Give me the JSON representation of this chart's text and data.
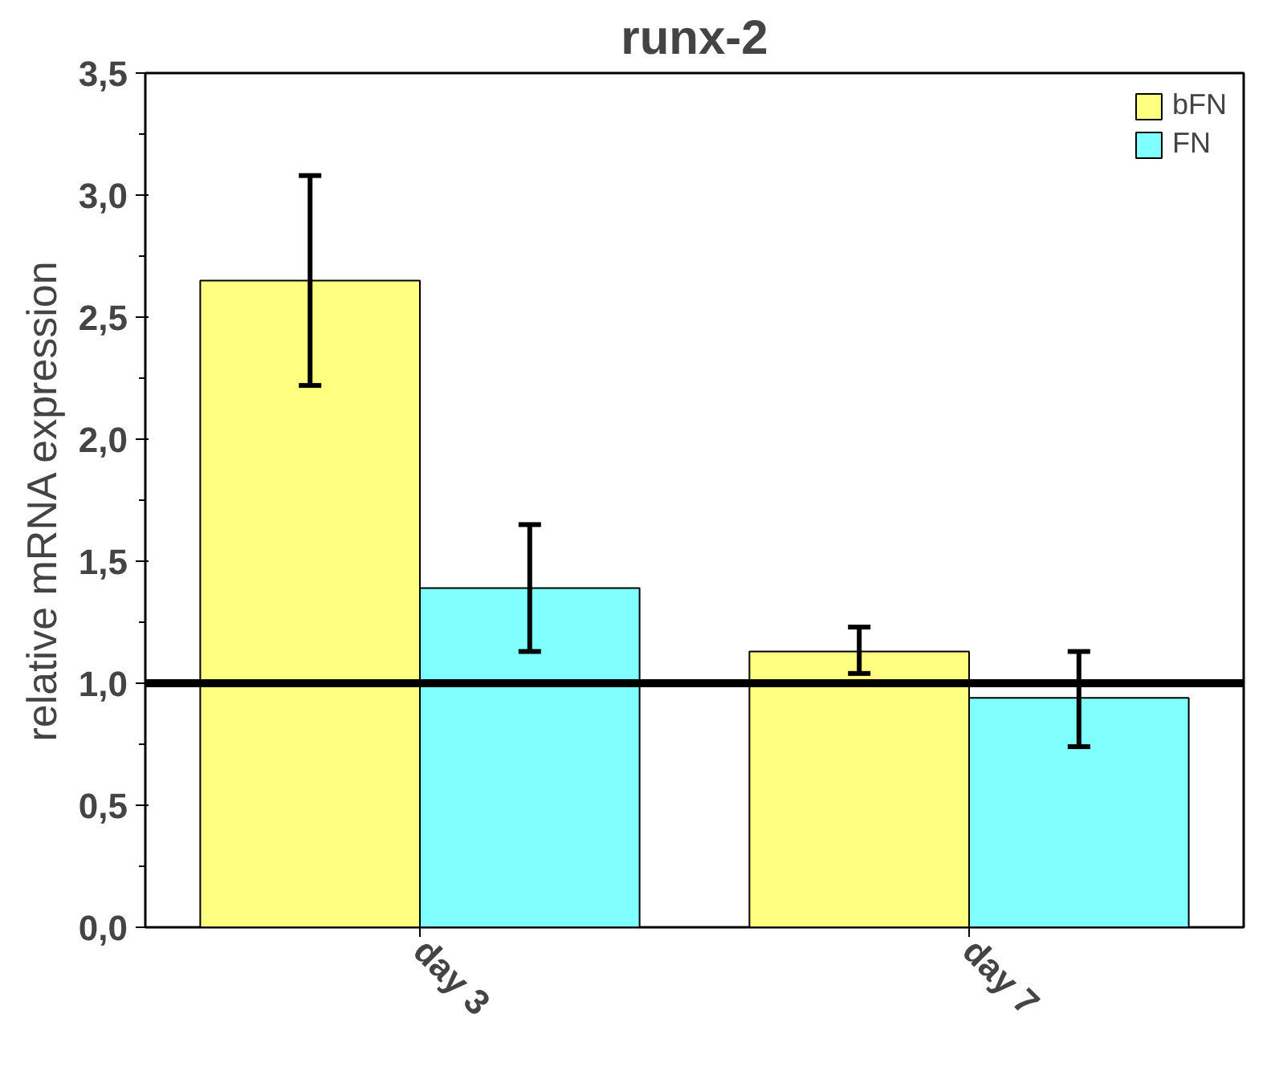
{
  "chart_data": {
    "type": "bar",
    "title": "runx-2",
    "ylabel": "relative mRNA expression",
    "categories": [
      "day 3",
      "day 7"
    ],
    "series": [
      {
        "name": "bFN",
        "color": "#ffff80",
        "values": [
          2.65,
          1.13
        ],
        "errors": [
          [
            2.22,
            3.08
          ],
          [
            1.04,
            1.23
          ]
        ]
      },
      {
        "name": "FN",
        "color": "#80ffff",
        "values": [
          1.39,
          0.94
        ],
        "errors": [
          [
            1.13,
            1.65
          ],
          [
            0.74,
            1.13
          ]
        ]
      }
    ],
    "ylim": [
      0,
      3.5
    ],
    "yticks": [
      {
        "value": 0,
        "label": "0,0"
      },
      {
        "value": 0.5,
        "label": "0,5"
      },
      {
        "value": 1,
        "label": "1,0"
      },
      {
        "value": 1.5,
        "label": "1,5"
      },
      {
        "value": 2,
        "label": "2,0"
      },
      {
        "value": 2.5,
        "label": "2,5"
      },
      {
        "value": 3,
        "label": "3,0"
      },
      {
        "value": 3.5,
        "label": "3,5"
      }
    ],
    "ref_lines": [
      {
        "axis": "y",
        "value": 1.0,
        "color": "#000000"
      }
    ],
    "grid": false,
    "legend": "top right"
  }
}
